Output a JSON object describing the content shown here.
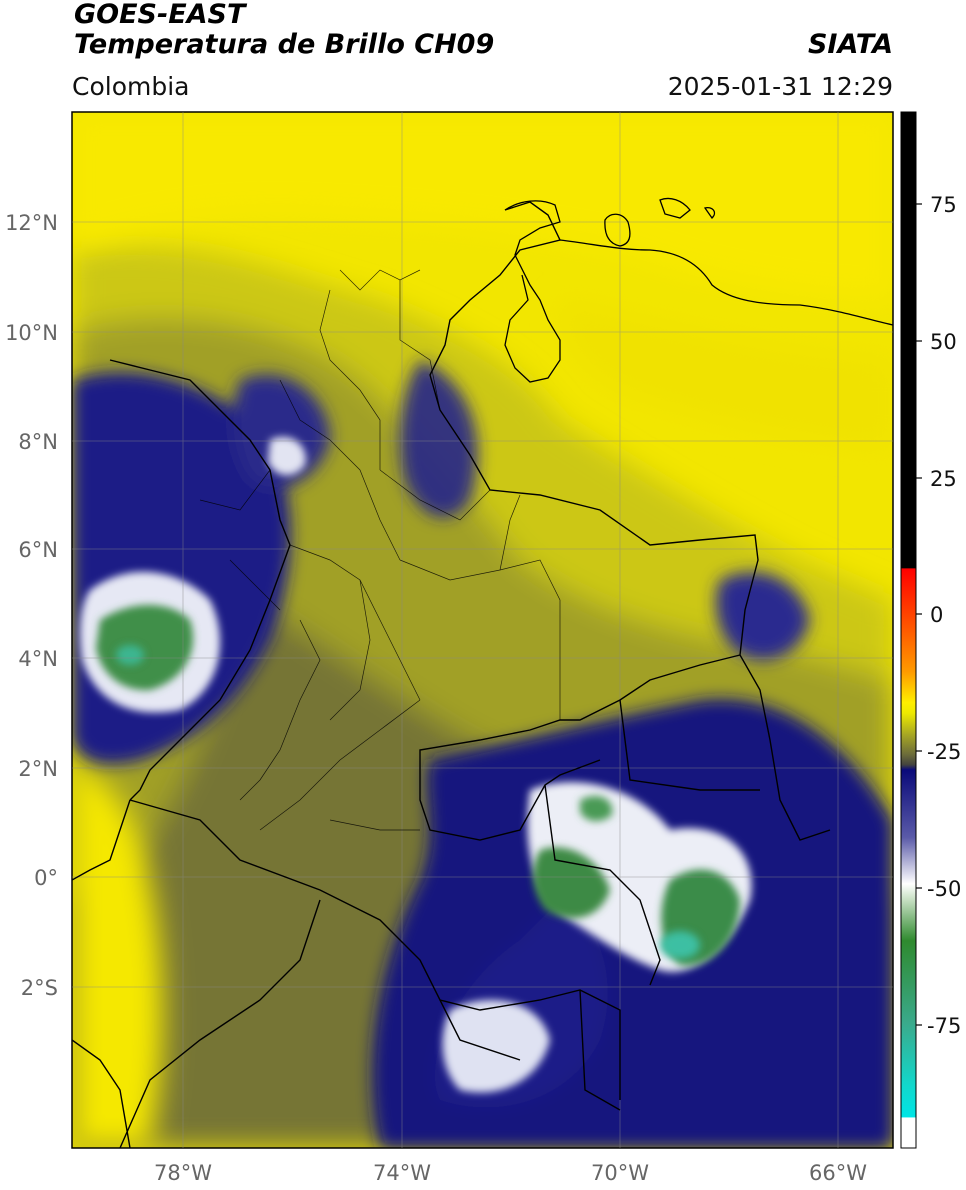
{
  "header": {
    "satellite": "GOES-EAST",
    "product": "Temperatura de Brillo CH09",
    "region": "Colombia",
    "agency": "SIATA",
    "datetime": "2025-01-31 12:29"
  },
  "map": {
    "lat_labels": [
      "12°N",
      "10°N",
      "8°N",
      "6°N",
      "4°N",
      "2°N",
      "0°",
      "2°S"
    ],
    "lon_labels": [
      "78°W",
      "74°W",
      "70°W",
      "66°W"
    ]
  },
  "colorbar": {
    "ticks": [
      "75",
      "50",
      "25",
      "0",
      "-25",
      "-50",
      "-75"
    ],
    "colors": {
      "black": "#000000",
      "red": "#ff2a00",
      "orange": "#ff8c00",
      "yellow": "#ffee00",
      "olive": "#9a9a2a",
      "gray": "#55554e",
      "navy": "#111188",
      "white": "#ffffff",
      "green": "#2f8a2f",
      "teal": "#3ac6a8",
      "cyan": "#00e5e5"
    }
  }
}
